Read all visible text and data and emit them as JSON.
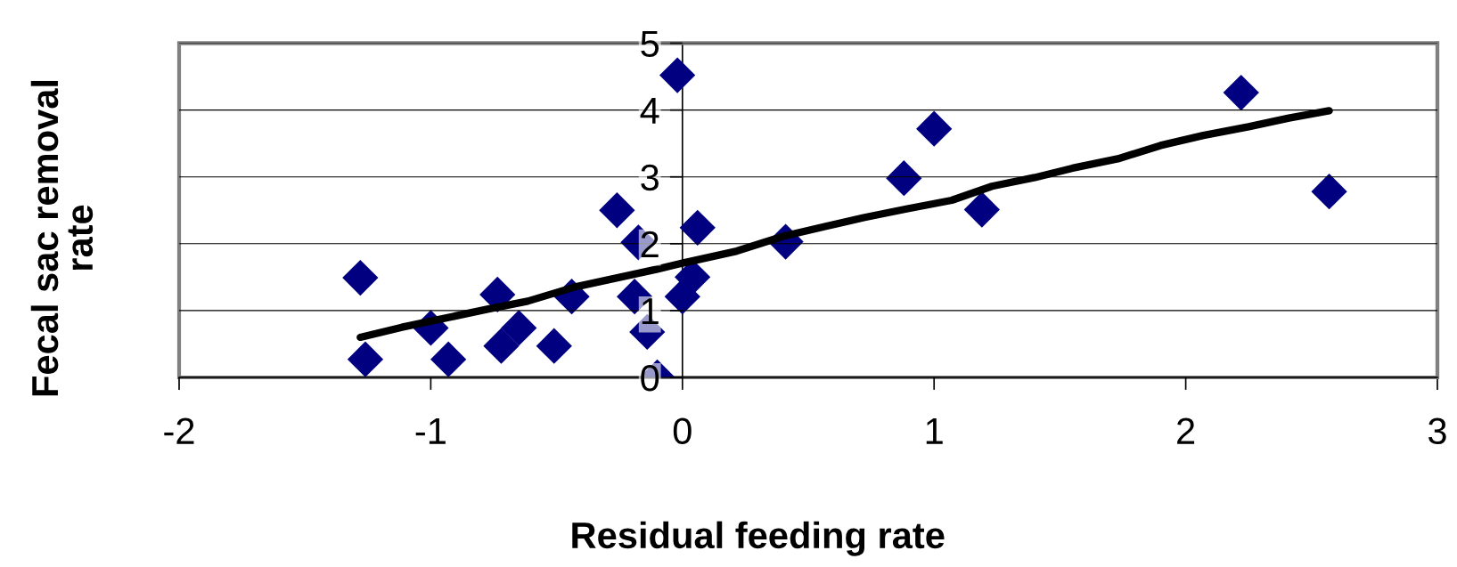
{
  "chart_data": {
    "type": "scatter",
    "xlabel": "Residual feeding rate",
    "ylabel": "Fecal sac removal\nrate",
    "xlim": [
      -2,
      3
    ],
    "xticks": [
      -2,
      -1,
      0,
      1,
      2,
      3
    ],
    "ylim": [
      0,
      5
    ],
    "yticks": [
      0,
      1,
      2,
      3,
      4,
      5
    ],
    "grid": "y",
    "marker": "diamond",
    "series": [
      {
        "color": "#000080",
        "x": [
          -1.28,
          -1.26,
          -1.0,
          -0.93,
          -0.735,
          -0.72,
          -0.65,
          -0.51,
          -0.44,
          -0.26,
          -0.175,
          -0.19,
          -0.14,
          -0.1,
          -0.02,
          0.0,
          0.04,
          0.06,
          0.41,
          0.88,
          1.0,
          1.19,
          2.22,
          2.57
        ],
        "values": [
          1.49,
          0.27,
          0.74,
          0.27,
          1.24,
          0.47,
          0.74,
          0.47,
          1.21,
          2.5,
          2.02,
          1.21,
          0.68,
          0.0,
          4.52,
          1.21,
          1.5,
          2.24,
          2.03,
          2.98,
          3.72,
          2.51,
          4.26,
          2.78
        ]
      },
      {
        "type": "line",
        "color": "#000000",
        "marker": "none",
        "line_style": "solid",
        "x": [
          -1.28,
          -1.115,
          -0.775,
          -0.615,
          -0.43,
          -0.1,
          0.0,
          0.216,
          0.4,
          0.57,
          0.72,
          0.89,
          1.07,
          1.23,
          1.4,
          1.55,
          1.73,
          1.9,
          2.07,
          2.25,
          2.41,
          2.57
        ],
        "values": [
          0.6,
          0.75,
          1.02,
          1.14,
          1.35,
          1.62,
          1.71,
          1.89,
          2.11,
          2.26,
          2.39,
          2.52,
          2.65,
          2.86,
          2.99,
          3.13,
          3.27,
          3.47,
          3.62,
          3.75,
          3.88,
          3.99
        ]
      }
    ]
  }
}
